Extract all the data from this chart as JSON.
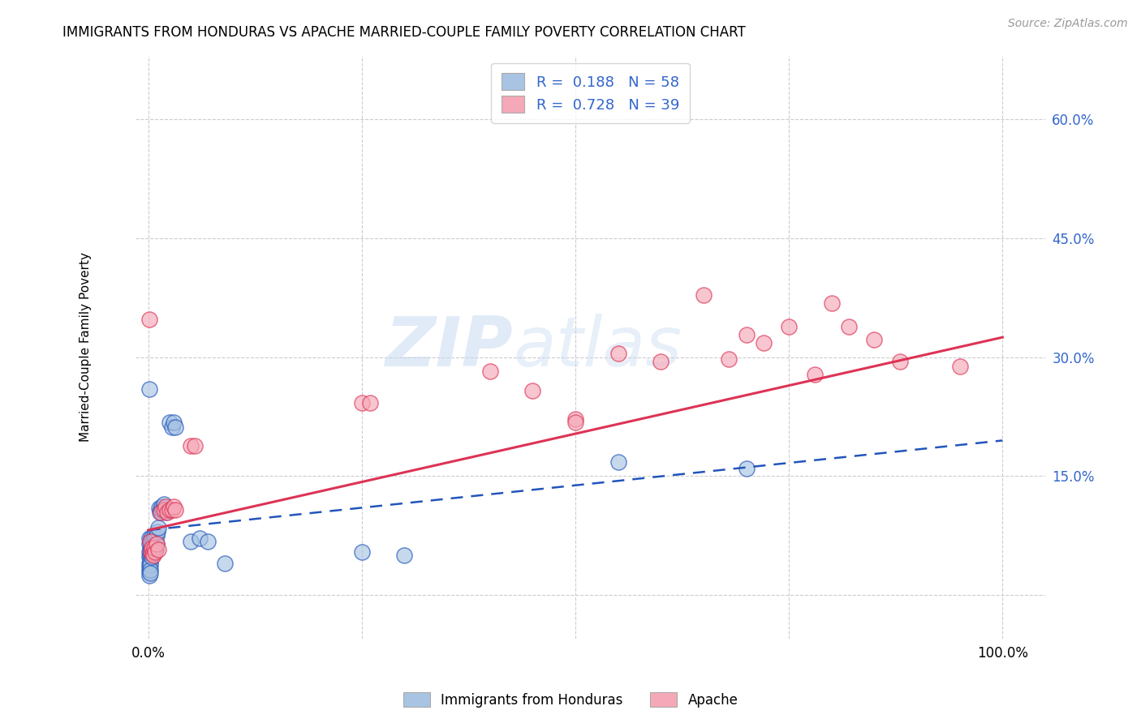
{
  "title": "IMMIGRANTS FROM HONDURAS VS APACHE MARRIED-COUPLE FAMILY POVERTY CORRELATION CHART",
  "source": "Source: ZipAtlas.com",
  "ylabel": "Married-Couple Family Poverty",
  "legend_label1": "Immigrants from Honduras",
  "legend_label2": "Apache",
  "r1": 0.188,
  "n1": 58,
  "r2": 0.728,
  "n2": 39,
  "color_blue": "#a8c4e2",
  "color_pink": "#f5a8b8",
  "line_blue": "#2255bb",
  "line_pink": "#dd3355",
  "watermark_zip": "ZIP",
  "watermark_atlas": "atlas",
  "yticks": [
    0.0,
    0.15,
    0.3,
    0.45,
    0.6
  ],
  "ytick_labels": [
    "",
    "15.0%",
    "30.0%",
    "45.0%",
    "60.0%"
  ],
  "xtick_vals": [
    0.0,
    0.25,
    0.5,
    0.75,
    1.0
  ],
  "xtick_labels": [
    "0.0%",
    "",
    "",
    "",
    "100.0%"
  ],
  "xlim": [
    -0.015,
    1.05
  ],
  "ylim": [
    -0.055,
    0.68
  ],
  "blue_line_y0": 0.082,
  "blue_line_y1": 0.195,
  "pink_line_y0": 0.082,
  "pink_line_y1": 0.325,
  "blue_points": [
    [
      0.001,
      0.065
    ],
    [
      0.001,
      0.072
    ],
    [
      0.001,
      0.055
    ],
    [
      0.001,
      0.048
    ],
    [
      0.001,
      0.04
    ],
    [
      0.001,
      0.035
    ],
    [
      0.001,
      0.03
    ],
    [
      0.001,
      0.025
    ],
    [
      0.002,
      0.068
    ],
    [
      0.002,
      0.058
    ],
    [
      0.002,
      0.05
    ],
    [
      0.002,
      0.042
    ],
    [
      0.002,
      0.038
    ],
    [
      0.002,
      0.032
    ],
    [
      0.002,
      0.028
    ],
    [
      0.003,
      0.072
    ],
    [
      0.003,
      0.06
    ],
    [
      0.003,
      0.052
    ],
    [
      0.004,
      0.068
    ],
    [
      0.004,
      0.058
    ],
    [
      0.004,
      0.048
    ],
    [
      0.005,
      0.07
    ],
    [
      0.005,
      0.062
    ],
    [
      0.005,
      0.055
    ],
    [
      0.006,
      0.068
    ],
    [
      0.006,
      0.062
    ],
    [
      0.007,
      0.075
    ],
    [
      0.007,
      0.065
    ],
    [
      0.008,
      0.072
    ],
    [
      0.008,
      0.06
    ],
    [
      0.009,
      0.065
    ],
    [
      0.009,
      0.058
    ],
    [
      0.01,
      0.075
    ],
    [
      0.01,
      0.065
    ],
    [
      0.011,
      0.08
    ],
    [
      0.012,
      0.085
    ],
    [
      0.013,
      0.11
    ],
    [
      0.014,
      0.105
    ],
    [
      0.015,
      0.108
    ],
    [
      0.016,
      0.112
    ],
    [
      0.017,
      0.108
    ],
    [
      0.018,
      0.115
    ],
    [
      0.019,
      0.108
    ],
    [
      0.02,
      0.105
    ],
    [
      0.022,
      0.108
    ],
    [
      0.025,
      0.218
    ],
    [
      0.028,
      0.212
    ],
    [
      0.03,
      0.218
    ],
    [
      0.032,
      0.212
    ],
    [
      0.05,
      0.068
    ],
    [
      0.06,
      0.072
    ],
    [
      0.07,
      0.068
    ],
    [
      0.09,
      0.04
    ],
    [
      0.25,
      0.055
    ],
    [
      0.3,
      0.05
    ],
    [
      0.001,
      0.26
    ],
    [
      0.55,
      0.168
    ],
    [
      0.7,
      0.16
    ]
  ],
  "pink_points": [
    [
      0.001,
      0.348
    ],
    [
      0.002,
      0.068
    ],
    [
      0.003,
      0.055
    ],
    [
      0.004,
      0.06
    ],
    [
      0.005,
      0.052
    ],
    [
      0.006,
      0.05
    ],
    [
      0.007,
      0.06
    ],
    [
      0.008,
      0.055
    ],
    [
      0.01,
      0.065
    ],
    [
      0.012,
      0.058
    ],
    [
      0.015,
      0.105
    ],
    [
      0.018,
      0.108
    ],
    [
      0.02,
      0.112
    ],
    [
      0.022,
      0.105
    ],
    [
      0.025,
      0.108
    ],
    [
      0.028,
      0.108
    ],
    [
      0.03,
      0.112
    ],
    [
      0.032,
      0.108
    ],
    [
      0.05,
      0.188
    ],
    [
      0.055,
      0.188
    ],
    [
      0.25,
      0.242
    ],
    [
      0.26,
      0.242
    ],
    [
      0.4,
      0.282
    ],
    [
      0.45,
      0.258
    ],
    [
      0.5,
      0.222
    ],
    [
      0.5,
      0.218
    ],
    [
      0.55,
      0.305
    ],
    [
      0.6,
      0.295
    ],
    [
      0.65,
      0.378
    ],
    [
      0.68,
      0.298
    ],
    [
      0.7,
      0.328
    ],
    [
      0.72,
      0.318
    ],
    [
      0.75,
      0.338
    ],
    [
      0.78,
      0.278
    ],
    [
      0.8,
      0.368
    ],
    [
      0.82,
      0.338
    ],
    [
      0.85,
      0.322
    ],
    [
      0.88,
      0.295
    ],
    [
      0.95,
      0.288
    ]
  ]
}
